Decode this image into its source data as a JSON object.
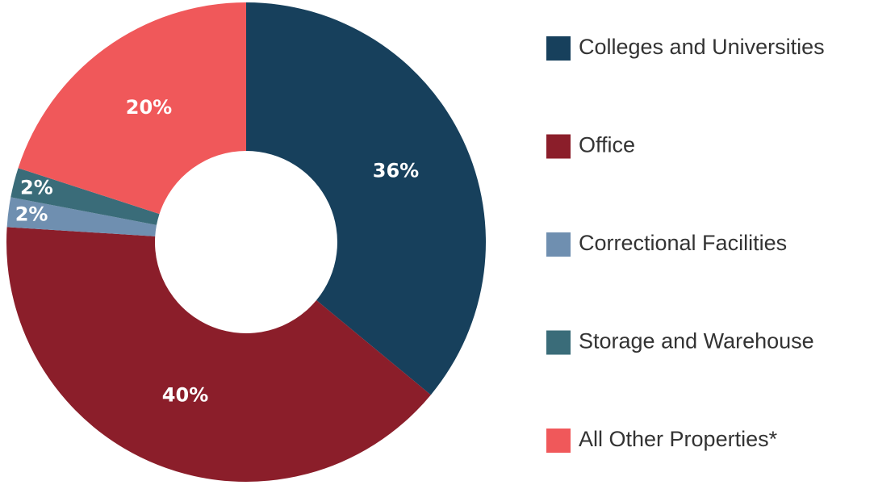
{
  "chart_data": {
    "type": "donut",
    "categories": [
      "Colleges and Universities",
      "Office",
      "Correctional Facilities",
      "Storage and Warehouse",
      "All Other Properties*"
    ],
    "values": [
      36,
      40,
      2,
      2,
      20
    ],
    "value_labels": [
      "36%",
      "40%",
      "2%",
      "2%",
      "20%"
    ],
    "colors": [
      "#17405c",
      "#8b1e2a",
      "#6f8fb0",
      "#3a6c79",
      "#f0585a"
    ],
    "legend": "right"
  }
}
